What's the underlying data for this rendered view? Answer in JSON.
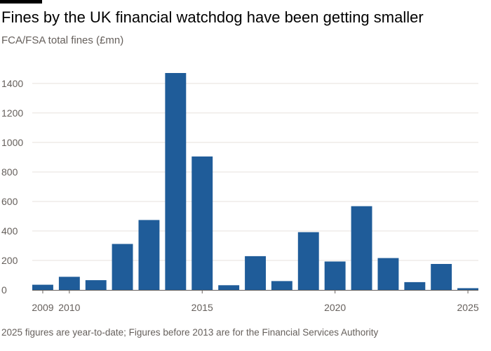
{
  "header": {
    "title": "Fines by the UK financial watchdog have been getting smaller",
    "subtitle": "FCA/FSA total fines (£mn)"
  },
  "footer": {
    "note": "2025 figures are year-to-date; Figures before 2013 are for the Financial Services Authority"
  },
  "colors": {
    "bar": "#1f5c99",
    "grid": "#e7e1dc",
    "axis": "#66605c"
  },
  "chart_data": {
    "type": "bar",
    "title": "Fines by the UK financial watchdog have been getting smaller",
    "subtitle": "FCA/FSA total fines (£mn)",
    "categories": [
      2009,
      2010,
      2011,
      2012,
      2013,
      2014,
      2015,
      2016,
      2017,
      2018,
      2019,
      2020,
      2021,
      2022,
      2023,
      2024,
      2025
    ],
    "values": [
      35,
      89,
      66,
      312,
      474,
      1471,
      905,
      32,
      229,
      60,
      392,
      193,
      568,
      216,
      53,
      176,
      12
    ],
    "x_tick_labels": [
      "2009",
      "2010",
      "2015",
      "2020",
      "2025"
    ],
    "y_ticks": [
      0,
      200,
      400,
      600,
      800,
      1000,
      1200,
      1400
    ],
    "ylim": [
      0,
      1500
    ],
    "xlabel": "",
    "ylabel": "",
    "grid": true,
    "legend": "none"
  }
}
